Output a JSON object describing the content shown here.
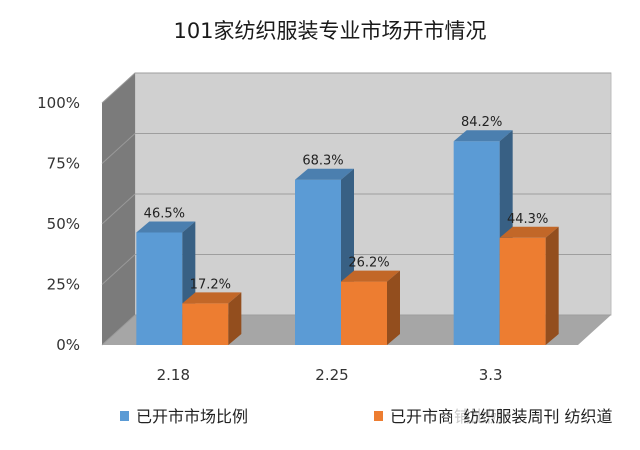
{
  "chart_data": {
    "type": "bar",
    "title": "101家纺织服装专业市场开市情况",
    "categories": [
      "2.18",
      "2.25",
      "3.3"
    ],
    "series": [
      {
        "name": "已开市市场比例",
        "values": [
          46.5,
          68.3,
          84.2
        ],
        "labels": [
          "46.5%",
          "68.3%",
          "84.2%"
        ],
        "color": "#5b9bd5"
      },
      {
        "name": "已开市商铺比例",
        "values": [
          17.2,
          26.2,
          44.3
        ],
        "labels": [
          "17.2%",
          "26.2%",
          "44.3%"
        ],
        "color": "#ed7d31"
      }
    ],
    "ylim": [
      0,
      100
    ],
    "yticks": [
      0,
      25,
      50,
      75,
      100
    ],
    "ytick_labels": [
      "0%",
      "25%",
      "50%",
      "75%",
      "100%"
    ],
    "xlabel": "",
    "ylabel": "",
    "grid": true,
    "style": "3d",
    "legend_position": "bottom"
  },
  "watermark": "纺织服装周刊 纺织道"
}
